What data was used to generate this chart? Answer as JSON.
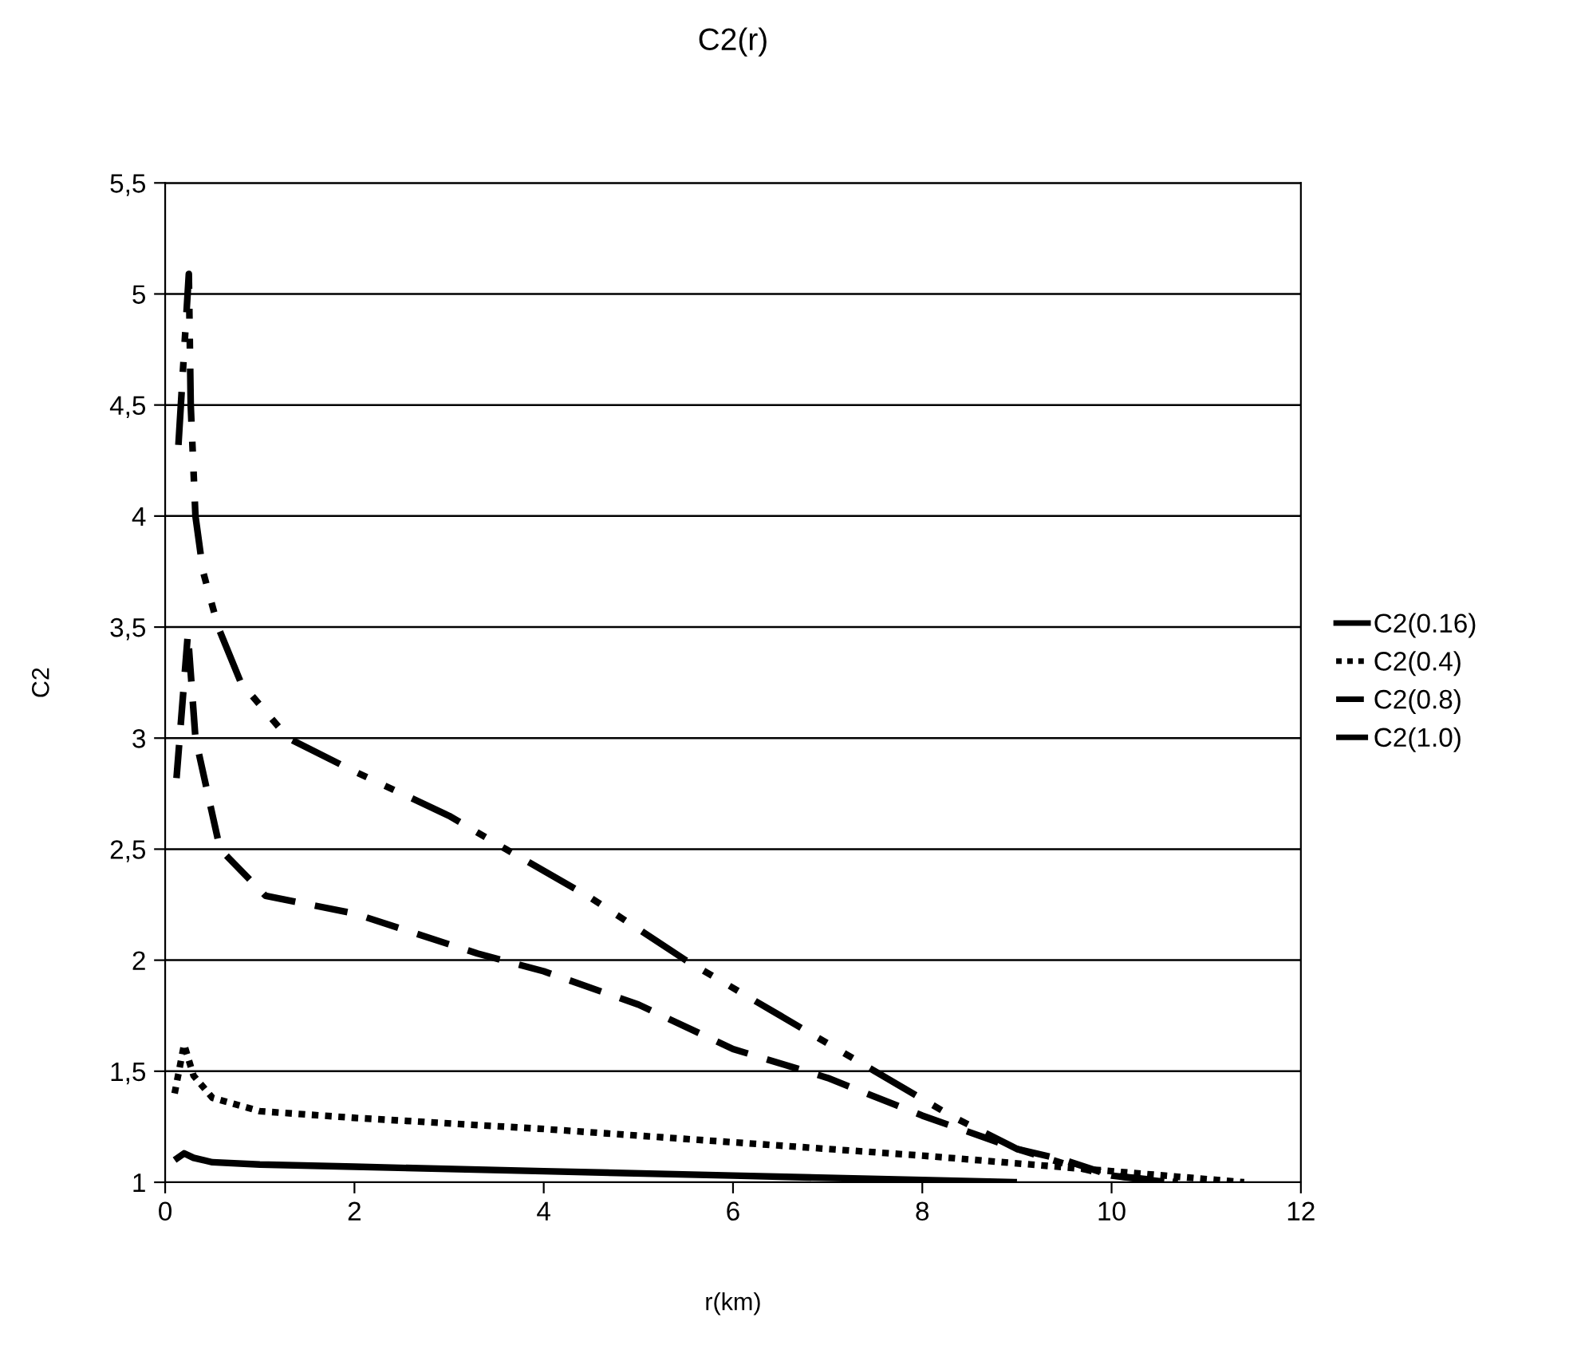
{
  "chart_data": {
    "type": "line",
    "title": "C2(r)",
    "xlabel": "r(km)",
    "ylabel": "C2",
    "xlim": [
      0,
      12
    ],
    "xticks": [
      0,
      2,
      4,
      6,
      8,
      10,
      12
    ],
    "ylim": [
      1,
      5.5
    ],
    "yticks": [
      1,
      {
        "value": 1.5,
        "label": "1,5"
      },
      2,
      {
        "value": 2.5,
        "label": "2,5"
      },
      3,
      {
        "value": 3.5,
        "label": "3,5"
      },
      4,
      {
        "value": 4.5,
        "label": "4,5"
      },
      5,
      {
        "value": 5.5,
        "label": "5,5"
      }
    ],
    "grid": "y",
    "legend": "right",
    "marker": "none",
    "series": [
      {
        "name": "C2(0.16)",
        "color": "#000000",
        "line_style": "solid",
        "x": [
          0.1,
          0.2,
          0.3,
          0.5,
          1,
          2,
          4,
          6,
          8,
          9
        ],
        "values": [
          1.1,
          1.13,
          1.11,
          1.09,
          1.08,
          1.07,
          1.05,
          1.03,
          1.01,
          1.0
        ]
      },
      {
        "name": "C2(0.4)",
        "color": "#000000",
        "line_style": "dotted",
        "x": [
          0.1,
          0.2,
          0.3,
          0.5,
          1,
          2,
          4,
          6,
          8,
          10,
          11.4
        ],
        "values": [
          1.4,
          1.62,
          1.48,
          1.38,
          1.32,
          1.29,
          1.24,
          1.18,
          1.12,
          1.05,
          1.0
        ]
      },
      {
        "name": "C2(0.8)",
        "color": "#000000",
        "line_style": "dashed",
        "x": [
          0.12,
          0.24,
          0.32,
          0.58,
          1.06,
          2,
          3.3,
          4,
          5,
          6,
          7,
          8,
          9,
          9.5,
          10,
          10.7
        ],
        "values": [
          2.82,
          3.47,
          3.0,
          2.5,
          2.29,
          2.21,
          2.03,
          1.95,
          1.8,
          1.6,
          1.47,
          1.3,
          1.15,
          1.1,
          1.03,
          1.0
        ]
      },
      {
        "name": "C2(1.0)",
        "color": "#000000",
        "line_style": "dashdot",
        "x": [
          0.14,
          0.25,
          0.27,
          0.32,
          0.4,
          0.56,
          0.8,
          1.3,
          2,
          3,
          3.6,
          4.5,
          5.5,
          6.5,
          7.5,
          8.3,
          9,
          9.6,
          10,
          10.6
        ],
        "values": [
          4.32,
          5.09,
          4.5,
          4.0,
          3.75,
          3.5,
          3.25,
          3.0,
          2.85,
          2.65,
          2.5,
          2.28,
          2.0,
          1.75,
          1.5,
          1.3,
          1.15,
          1.07,
          1.03,
          1.0
        ]
      }
    ]
  }
}
